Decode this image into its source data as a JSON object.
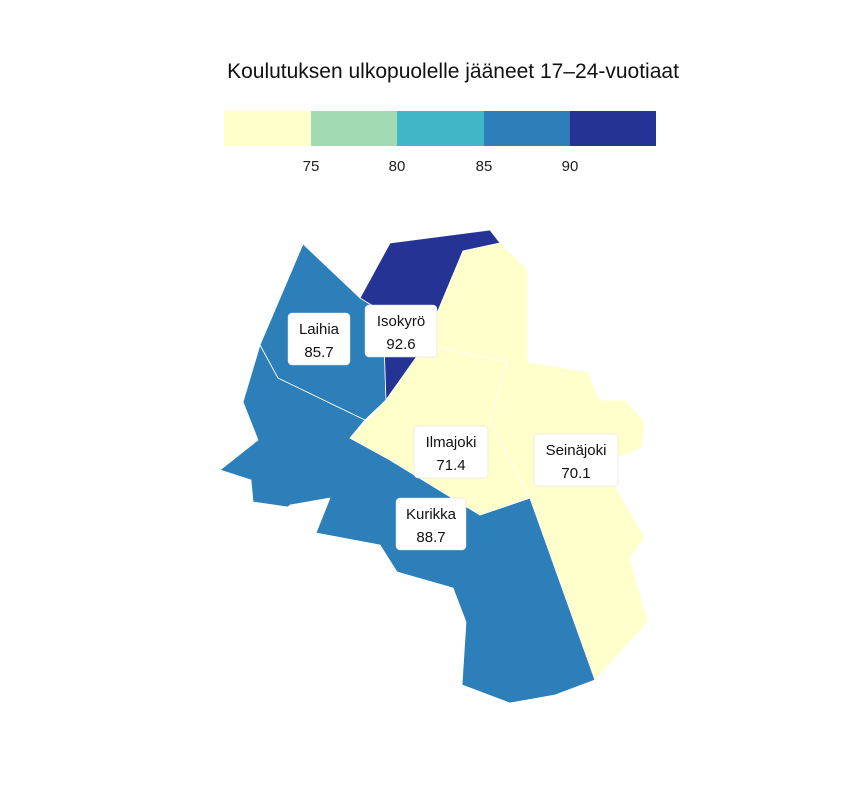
{
  "title": "Koulutuksen ulkopuolelle jääneet 17–24-vuotiaat",
  "legend": {
    "colors": [
      "#ffffcc",
      "#a1dab4",
      "#41b6c4",
      "#2c7fb8",
      "#253494"
    ],
    "breaks": [
      "75",
      "80",
      "85",
      "90"
    ]
  },
  "regions": [
    {
      "id": "laihia",
      "name": "Laihia",
      "value": "85.7",
      "color": "#2c7fb8"
    },
    {
      "id": "isokyro",
      "name": "Isokyrö",
      "value": "92.6",
      "color": "#253494"
    },
    {
      "id": "ilmajoki",
      "name": "Ilmajoki",
      "value": "71.4",
      "color": "#ffffcc"
    },
    {
      "id": "seinajoki",
      "name": "Seinäjoki",
      "value": "70.1",
      "color": "#ffffcc"
    },
    {
      "id": "kurikka",
      "name": "Kurikka",
      "value": "88.7",
      "color": "#2c7fb8"
    }
  ]
}
